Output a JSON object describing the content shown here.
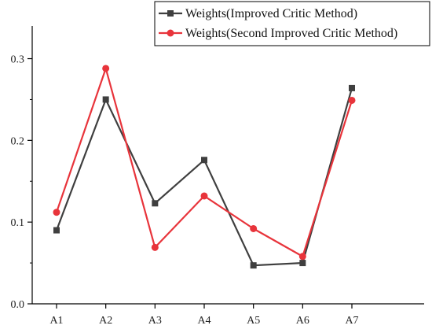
{
  "chart_data": {
    "type": "line",
    "title": "",
    "xlabel": "",
    "ylabel": "",
    "categories": [
      "A1",
      "A2",
      "A3",
      "A4",
      "A5",
      "A6",
      "A7"
    ],
    "ylim": [
      0,
      0.34
    ],
    "yticks": [
      0.0,
      0.1,
      0.2,
      0.3
    ],
    "ytick_labels": [
      "0.0",
      "0.1",
      "0.2",
      "0.3"
    ],
    "grid": false,
    "legend_position": "top-right",
    "series": [
      {
        "name": "Weights(Improved Critic Method)",
        "color": "#3f3f3f",
        "marker": "square",
        "values": [
          0.09,
          0.25,
          0.123,
          0.176,
          0.047,
          0.05,
          0.264
        ]
      },
      {
        "name": "Weights(Second Improved Critic Method)",
        "color": "#e8343b",
        "marker": "circle",
        "values": [
          0.112,
          0.288,
          0.069,
          0.132,
          0.092,
          0.058,
          0.249
        ]
      }
    ]
  }
}
